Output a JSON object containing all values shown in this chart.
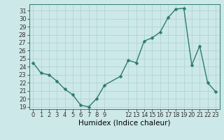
{
  "x": [
    0,
    1,
    2,
    3,
    4,
    5,
    6,
    7,
    8,
    9,
    11,
    12,
    13,
    14,
    15,
    16,
    17,
    18,
    19,
    20,
    21,
    22,
    23
  ],
  "y": [
    24.5,
    23.2,
    23.0,
    22.2,
    21.2,
    20.5,
    19.2,
    19.0,
    20.0,
    21.7,
    22.8,
    24.8,
    24.5,
    27.2,
    27.6,
    28.3,
    30.1,
    31.2,
    31.3,
    24.2,
    26.6,
    22.0,
    20.9
  ],
  "line_color": "#2d7b72",
  "marker": "D",
  "marker_size": 2.5,
  "bg_color": "#cde8e8",
  "grid_color": "#b0d5d5",
  "xlabel": "Humidex (Indice chaleur)",
  "xlim": [
    -0.5,
    23.5
  ],
  "ylim": [
    18.7,
    31.8
  ],
  "yticks": [
    19,
    20,
    21,
    22,
    23,
    24,
    25,
    26,
    27,
    28,
    29,
    30,
    31
  ],
  "xtick_positions": [
    0,
    1,
    2,
    3,
    4,
    5,
    6,
    7,
    8,
    9,
    12,
    13,
    14,
    15,
    16,
    17,
    18,
    19,
    20,
    21,
    22,
    23
  ],
  "xtick_labels": [
    "0",
    "1",
    "2",
    "3",
    "4",
    "5",
    "6",
    "7",
    "8",
    "9",
    "12",
    "13",
    "14",
    "15",
    "16",
    "17",
    "18",
    "19",
    "20",
    "21",
    "22",
    "23"
  ],
  "tick_fontsize": 6,
  "label_fontsize": 7.5,
  "line_width": 1.0,
  "spine_color": "#2d7b72"
}
